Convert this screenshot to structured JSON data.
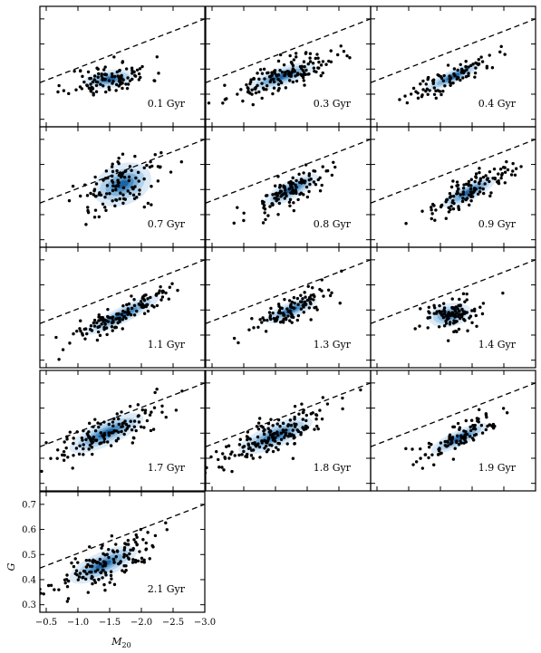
{
  "chart_data": {
    "type": "scatter",
    "grid": false,
    "xlabel": "M20",
    "ylabel": "G",
    "xlim": [
      -0.4,
      -3.0
    ],
    "ylim": [
      0.27,
      0.75
    ],
    "x_ticks": [
      "−0.5",
      "−1.0",
      "−1.5",
      "−2.0",
      "−2.5",
      "−3.0"
    ],
    "x_tick_values": [
      -0.5,
      -1.0,
      -1.5,
      -2.0,
      -2.5,
      -3.0
    ],
    "y_ticks": [
      "0.3",
      "0.4",
      "0.5",
      "0.6",
      "0.7"
    ],
    "y_tick_values": [
      0.3,
      0.4,
      0.5,
      0.6,
      0.7
    ],
    "reference_line": {
      "style": "dashed",
      "points": [
        [
          -0.4,
          0.446
        ],
        [
          -3.0,
          0.7
        ]
      ]
    },
    "density_colors": [
      "#dcebf7",
      "#b3d2eb",
      "#7fb2da",
      "#4a8ec4",
      "#1f63a3"
    ],
    "point_color": "#000000",
    "panels": [
      {
        "label": "0.1 Gyr",
        "cx": -1.5,
        "cy": 0.46,
        "sx": 0.38,
        "slope": 0.035,
        "scatter": 0.035,
        "n": 110,
        "seed": 11,
        "wide": 1.0
      },
      {
        "label": "0.3 Gyr",
        "cx": -1.6,
        "cy": 0.47,
        "sx": 0.5,
        "slope": 0.085,
        "scatter": 0.032,
        "n": 150,
        "seed": 23,
        "wide": 1.1
      },
      {
        "label": "0.4 Gyr",
        "cx": -1.7,
        "cy": 0.47,
        "sx": 0.42,
        "slope": 0.12,
        "scatter": 0.025,
        "n": 90,
        "seed": 37,
        "wide": 0.8
      },
      {
        "label": "0.7 Gyr",
        "cx": -1.7,
        "cy": 0.52,
        "sx": 0.42,
        "slope": 0.1,
        "scatter": 0.055,
        "n": 110,
        "seed": 41,
        "wide": 1.5
      },
      {
        "label": "0.8 Gyr",
        "cx": -1.75,
        "cy": 0.5,
        "sx": 0.4,
        "slope": 0.13,
        "scatter": 0.035,
        "n": 120,
        "seed": 53,
        "wide": 1.0
      },
      {
        "label": "0.9 Gyr",
        "cx": -1.95,
        "cy": 0.49,
        "sx": 0.4,
        "slope": 0.13,
        "scatter": 0.032,
        "n": 120,
        "seed": 67,
        "wide": 1.0
      },
      {
        "label": "1.1 Gyr",
        "cx": -1.7,
        "cy": 0.48,
        "sx": 0.55,
        "slope": 0.125,
        "scatter": 0.028,
        "n": 140,
        "seed": 71,
        "wide": 1.0
      },
      {
        "label": "1.3 Gyr",
        "cx": -1.75,
        "cy": 0.5,
        "sx": 0.38,
        "slope": 0.11,
        "scatter": 0.03,
        "n": 110,
        "seed": 83,
        "wide": 1.0
      },
      {
        "label": "1.4 Gyr",
        "cx": -1.65,
        "cy": 0.48,
        "sx": 0.32,
        "slope": 0.05,
        "scatter": 0.038,
        "n": 110,
        "seed": 97,
        "wide": 1.2
      },
      {
        "label": "1.7 Gyr",
        "cx": -1.45,
        "cy": 0.5,
        "sx": 0.55,
        "slope": 0.115,
        "scatter": 0.04,
        "n": 130,
        "seed": 101,
        "wide": 1.2
      },
      {
        "label": "1.8 Gyr",
        "cx": -1.5,
        "cy": 0.49,
        "sx": 0.55,
        "slope": 0.105,
        "scatter": 0.038,
        "n": 170,
        "seed": 113,
        "wide": 1.2
      },
      {
        "label": "1.9 Gyr",
        "cx": -1.8,
        "cy": 0.48,
        "sx": 0.42,
        "slope": 0.12,
        "scatter": 0.03,
        "n": 100,
        "seed": 127,
        "wide": 1.0
      },
      {
        "label": "2.1 Gyr",
        "cx": -1.4,
        "cy": 0.46,
        "sx": 0.5,
        "slope": 0.115,
        "scatter": 0.045,
        "n": 150,
        "seed": 131,
        "wide": 1.1
      }
    ]
  }
}
